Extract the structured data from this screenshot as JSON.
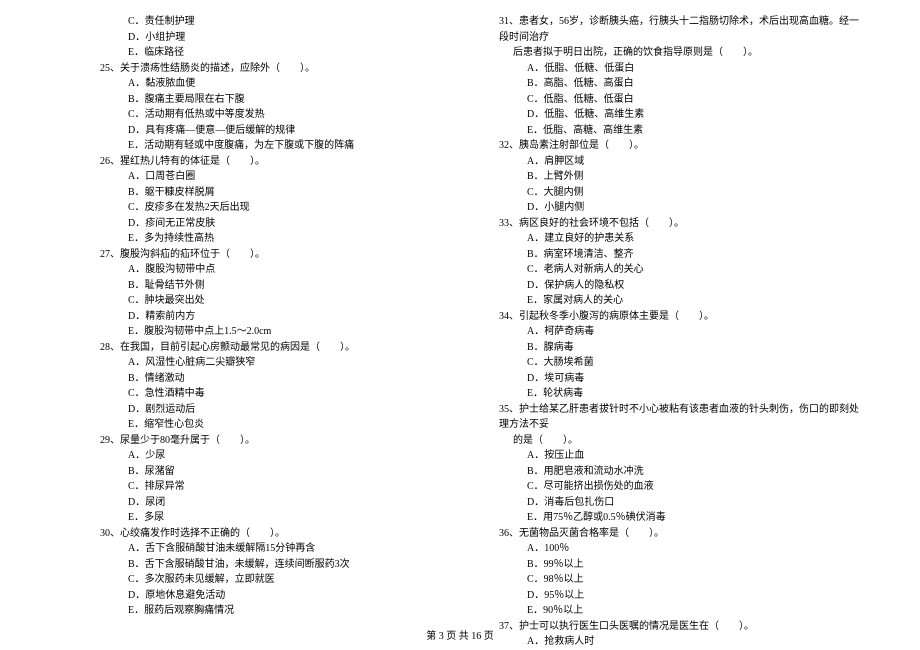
{
  "footer": "第 3 页 共 16 页",
  "left": [
    {
      "cls": "opt",
      "t": "C．责任制护理"
    },
    {
      "cls": "opt",
      "t": "D．小组护理"
    },
    {
      "cls": "opt",
      "t": "E．临床路径"
    },
    {
      "cls": "q-stem",
      "t": "25、关于溃疡性结肠炎的描述，应除外（　　）。"
    },
    {
      "cls": "opt",
      "t": "A．黏液脓血便"
    },
    {
      "cls": "opt",
      "t": "B．腹痛主要局限在右下腹"
    },
    {
      "cls": "opt",
      "t": "C．活动期有低热或中等度发热"
    },
    {
      "cls": "opt",
      "t": "D．具有疼痛—便意—便后缓解的规律"
    },
    {
      "cls": "opt",
      "t": "E．活动期有轻或中度腹痛，为左下腹或下腹的阵痛"
    },
    {
      "cls": "q-stem",
      "t": "26、猩红热儿特有的体征是（　　）。"
    },
    {
      "cls": "opt",
      "t": "A．口周苍白圈"
    },
    {
      "cls": "opt",
      "t": "B．躯干糠皮样脱屑"
    },
    {
      "cls": "opt",
      "t": "C．皮疹多在发热2天后出现"
    },
    {
      "cls": "opt",
      "t": "D．疹间无正常皮肤"
    },
    {
      "cls": "opt",
      "t": "E．多为持续性高热"
    },
    {
      "cls": "q-stem",
      "t": "27、腹股沟斜疝的疝环位于（　　）。"
    },
    {
      "cls": "opt",
      "t": "A．腹股沟韧带中点"
    },
    {
      "cls": "opt",
      "t": "B．耻骨结节外侧"
    },
    {
      "cls": "opt",
      "t": "C．肿块最突出处"
    },
    {
      "cls": "opt",
      "t": "D．精索前内方"
    },
    {
      "cls": "opt",
      "t": "E．腹股沟韧带中点上1.5～2.0cm"
    },
    {
      "cls": "q-stem",
      "t": "28、在我国，目前引起心房颤动最常见的病因是（　　）。"
    },
    {
      "cls": "opt",
      "t": "A．风湿性心脏病二尖瓣狭窄"
    },
    {
      "cls": "opt",
      "t": "B．情绪激动"
    },
    {
      "cls": "opt",
      "t": "C．急性酒精中毒"
    },
    {
      "cls": "opt",
      "t": "D．剧烈运动后"
    },
    {
      "cls": "opt",
      "t": "E．缩窄性心包炎"
    },
    {
      "cls": "q-stem",
      "t": "29、尿量少于80毫升属于（　　）。"
    },
    {
      "cls": "opt",
      "t": "A．少尿"
    },
    {
      "cls": "opt",
      "t": "B．尿潴留"
    },
    {
      "cls": "opt",
      "t": "C．排尿异常"
    },
    {
      "cls": "opt",
      "t": "D．尿闭"
    },
    {
      "cls": "opt",
      "t": "E．多尿"
    },
    {
      "cls": "q-stem",
      "t": "30、心绞痛发作时选择不正确的（　　）。"
    },
    {
      "cls": "opt",
      "t": "A．舌下含服硝酸甘油未缓解隔15分钟再含"
    },
    {
      "cls": "opt",
      "t": "B．舌下含服硝酸甘油，未缓解，连续间断服药3次"
    },
    {
      "cls": "opt",
      "t": "C．多次服药未见缓解，立即就医"
    },
    {
      "cls": "opt",
      "t": "D．原地休息避免活动"
    },
    {
      "cls": "opt",
      "t": "E．服药后观察胸痛情况"
    }
  ],
  "right": [
    {
      "cls": "q-stem",
      "t": "31、患者女，56岁，诊断胰头癌，行胰头十二指肠切除术，术后出现高血糖。经一段时间治疗"
    },
    {
      "cls": "q-cont",
      "t": "后患者拟于明日出院，正确的饮食指导原则是（　　）。"
    },
    {
      "cls": "opt",
      "t": "A．低脂、低糖、低蛋白"
    },
    {
      "cls": "opt",
      "t": "B．高脂、低糖、高蛋白"
    },
    {
      "cls": "opt",
      "t": "C．低脂、低糖、低蛋白"
    },
    {
      "cls": "opt",
      "t": "D．低脂、低糖、高维生素"
    },
    {
      "cls": "opt",
      "t": "E．低脂、高糖、高维生素"
    },
    {
      "cls": "q-stem",
      "t": "32、胰岛素注射部位是（　　）。"
    },
    {
      "cls": "opt",
      "t": "A．肩胛区域"
    },
    {
      "cls": "opt",
      "t": "B．上臂外侧"
    },
    {
      "cls": "opt",
      "t": "C．大腿内侧"
    },
    {
      "cls": "opt",
      "t": "D．小腿内侧"
    },
    {
      "cls": "q-stem",
      "t": "33、病区良好的社会环境不包括（　　）。"
    },
    {
      "cls": "opt",
      "t": "A．建立良好的护患关系"
    },
    {
      "cls": "opt",
      "t": "B．病室环境清洁、整齐"
    },
    {
      "cls": "opt",
      "t": "C．老病人对新病人的关心"
    },
    {
      "cls": "opt",
      "t": "D．保护病人的隐私权"
    },
    {
      "cls": "opt",
      "t": "E．家属对病人的关心"
    },
    {
      "cls": "q-stem",
      "t": "34、引起秋冬季小腹泻的病原体主要是（　　）。"
    },
    {
      "cls": "opt",
      "t": "A．柯萨奇病毒"
    },
    {
      "cls": "opt",
      "t": "B．腺病毒"
    },
    {
      "cls": "opt",
      "t": "C．大肠埃希菌"
    },
    {
      "cls": "opt",
      "t": "D．埃可病毒"
    },
    {
      "cls": "opt",
      "t": "E．轮状病毒"
    },
    {
      "cls": "q-stem",
      "t": "35、护士给某乙肝患者拔针时不小心被粘有该患者血液的针头刺伤，伤口的即刻处理方法不妥"
    },
    {
      "cls": "q-cont",
      "t": "的是（　　）。"
    },
    {
      "cls": "opt",
      "t": "A．按压止血"
    },
    {
      "cls": "opt",
      "t": "B．用肥皂液和流动水冲洗"
    },
    {
      "cls": "opt",
      "t": "C．尽可能挤出损伤处的血液"
    },
    {
      "cls": "opt",
      "t": "D．消毒后包扎伤口"
    },
    {
      "cls": "opt",
      "t": "E．用75％乙醇或0.5％碘伏消毒"
    },
    {
      "cls": "q-stem",
      "t": "36、无菌物品灭菌合格率是（　　）。"
    },
    {
      "cls": "opt",
      "t": "A．100％"
    },
    {
      "cls": "opt",
      "t": "B．99％以上"
    },
    {
      "cls": "opt",
      "t": "C．98％以上"
    },
    {
      "cls": "opt",
      "t": "D．95％以上"
    },
    {
      "cls": "opt",
      "t": "E．90％以上"
    },
    {
      "cls": "q-stem",
      "t": "37、护士可以执行医生口头医嘱的情况是医生在（　　）。"
    },
    {
      "cls": "opt",
      "t": "A．抢救病人时"
    }
  ]
}
